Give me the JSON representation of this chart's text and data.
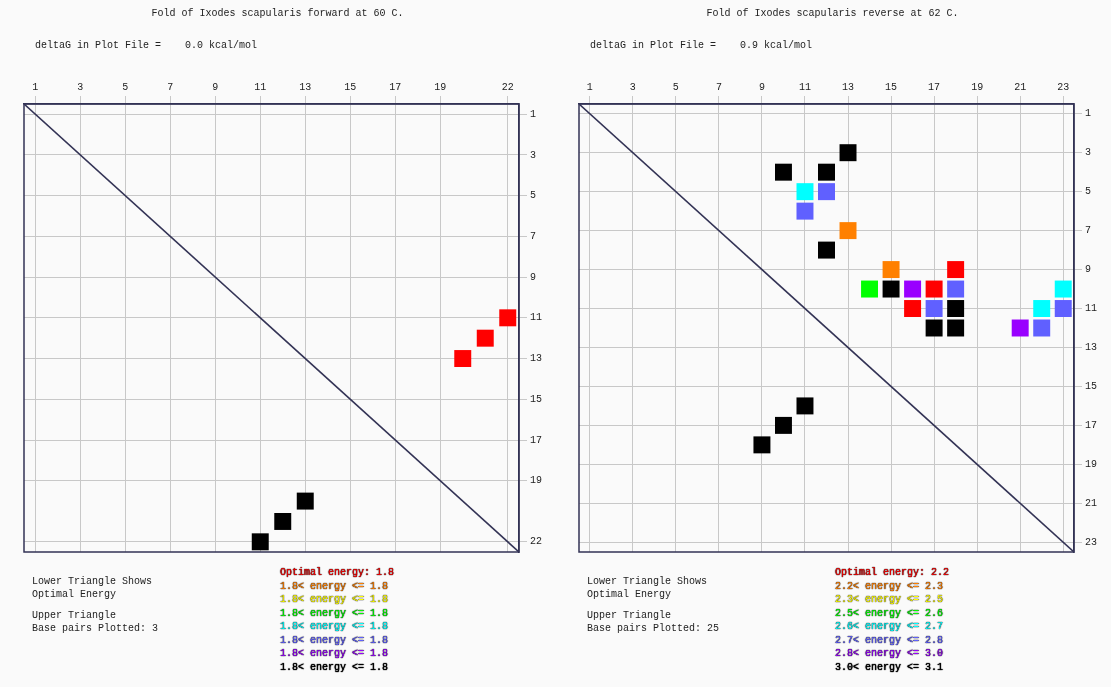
{
  "chart_data": [
    {
      "type": "scatter",
      "title": "Fold of Ixodes scapularis forward at 60 C.",
      "subtitle": "deltaG in Plot File =    0.0 kcal/mol",
      "xlim": [
        0.5,
        22.5
      ],
      "ylim": [
        22.5,
        0.5
      ],
      "xticks": [
        1,
        3,
        5,
        7,
        9,
        11,
        13,
        15,
        17,
        19,
        22
      ],
      "yticks": [
        1,
        3,
        5,
        7,
        9,
        11,
        13,
        15,
        17,
        19,
        22
      ],
      "grid": true,
      "legend": "bottom",
      "marker": "square",
      "annotations": [
        "Lower Triangle Shows",
        "Optimal Energy",
        "Upper Triangle",
        "Base pairs Plotted: 3"
      ],
      "series": [
        {
          "type": "line",
          "marker": "none",
          "color": "#333355",
          "x": [
            0.5,
            22.5
          ],
          "values": [
            0.5,
            22.5
          ]
        },
        {
          "color": "#000000",
          "x": [
            13,
            12,
            11
          ],
          "values": [
            20,
            21,
            22
          ]
        },
        {
          "name": "Optimal energy: 1.8",
          "color": "#ff0000",
          "x": [
            22,
            21,
            20
          ],
          "values": [
            11,
            12,
            13
          ]
        },
        {
          "name": "1.8< energy <= 1.8",
          "color": "#ff8000"
        },
        {
          "name": "1.8< energy <= 1.8",
          "color": "#ffff00"
        },
        {
          "name": "1.8< energy <= 1.8",
          "color": "#00ff00"
        },
        {
          "name": "1.8< energy <= 1.8",
          "color": "#00ffff"
        },
        {
          "name": "1.8< energy <= 1.8",
          "color": "#6060ff"
        },
        {
          "name": "1.8< energy <= 1.8",
          "color": "#9900ff"
        },
        {
          "name": "1.8< energy <= 1.8",
          "color": "#000000"
        }
      ]
    },
    {
      "type": "scatter",
      "title": "Fold of Ixodes scapularis reverse at 62 C.",
      "subtitle": "deltaG in Plot File =    0.9 kcal/mol",
      "xlim": [
        0.5,
        23.5
      ],
      "ylim": [
        23.5,
        0.5
      ],
      "xticks": [
        1,
        3,
        5,
        7,
        9,
        11,
        13,
        15,
        17,
        19,
        21,
        23
      ],
      "yticks": [
        1,
        3,
        5,
        7,
        9,
        11,
        13,
        15,
        17,
        19,
        21,
        23
      ],
      "grid": true,
      "legend": "bottom",
      "marker": "square",
      "annotations": [
        "Lower Triangle Shows",
        "Optimal Energy",
        "Upper Triangle",
        "Base pairs Plotted: 25"
      ],
      "series": [
        {
          "type": "line",
          "marker": "none",
          "color": "#333355",
          "x": [
            0.5,
            23.5
          ],
          "values": [
            0.5,
            23.5
          ]
        },
        {
          "color": "#000000",
          "x": [
            11,
            10,
            9
          ],
          "values": [
            16,
            17,
            18
          ]
        },
        {
          "name": "Optimal energy: 2.2",
          "color": "#ff0000",
          "x": [
            18,
            17,
            16
          ],
          "values": [
            9,
            10,
            11
          ]
        },
        {
          "name": "2.2< energy <= 2.3",
          "color": "#ff8000",
          "x": [
            13,
            15
          ],
          "values": [
            7,
            9
          ]
        },
        {
          "name": "2.3< energy <= 2.5",
          "color": "#ffff00"
        },
        {
          "name": "2.5< energy <= 2.6",
          "color": "#00ff00",
          "x": [
            14
          ],
          "values": [
            10
          ]
        },
        {
          "name": "2.6< energy <= 2.7",
          "color": "#00ffff",
          "x": [
            11,
            23,
            22
          ],
          "values": [
            5,
            10,
            11
          ]
        },
        {
          "name": "2.7< energy <= 2.8",
          "color": "#6060ff",
          "x": [
            12,
            11,
            18,
            17,
            23,
            22
          ],
          "values": [
            5,
            6,
            10,
            11,
            11,
            12
          ]
        },
        {
          "name": "2.8< energy <= 3.0",
          "color": "#9900ff",
          "x": [
            16,
            21
          ],
          "values": [
            10,
            12
          ]
        },
        {
          "name": "3.0< energy <= 3.1",
          "color": "#000000",
          "x": [
            13,
            10,
            12,
            12,
            15,
            18,
            17,
            18
          ],
          "values": [
            3,
            4,
            4,
            8,
            10,
            11,
            12,
            12
          ]
        }
      ]
    }
  ]
}
